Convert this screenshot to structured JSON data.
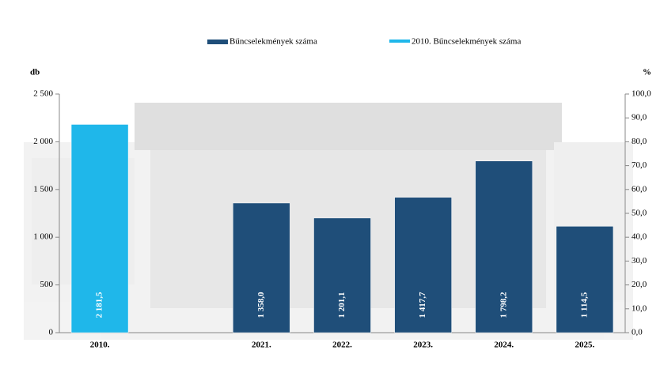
{
  "chart_data": {
    "type": "bar",
    "categories": [
      "2010.",
      null,
      "2021.",
      "2022.",
      "2023.",
      "2024.",
      "2025."
    ],
    "series": [
      {
        "name": "Bűncselekmények száma",
        "color": "#1f4e79",
        "values": [
          null,
          null,
          1358.0,
          1201.1,
          1417.7,
          1798.2,
          1114.5
        ],
        "value_labels": [
          null,
          null,
          "1 358,0",
          "1 201,1",
          "1 417,7",
          "1 798,2",
          "1 114,5"
        ]
      },
      {
        "name": "2010. Bűncselekmények száma",
        "color": "#1fb7ea",
        "values": [
          2181.5,
          null,
          null,
          null,
          null,
          null,
          null
        ],
        "value_labels": [
          "2 181,5",
          null,
          null,
          null,
          null,
          null,
          null
        ]
      }
    ],
    "ylabel": "db",
    "y2label": "%",
    "ylim": [
      0,
      2500
    ],
    "yticks": [
      0,
      500,
      {
        "value": 1000,
        "label": "1 000"
      },
      {
        "value": 1500,
        "label": "1 500"
      },
      {
        "value": 2000,
        "label": "2 000"
      },
      {
        "value": 2500,
        "label": "2 500"
      }
    ],
    "y2lim": [
      0,
      100
    ],
    "y2ticks": [
      {
        "value": 0,
        "label": "0,0"
      },
      {
        "value": 10,
        "label": "10,0"
      },
      {
        "value": 20,
        "label": "20,0"
      },
      {
        "value": 30,
        "label": "30,0"
      },
      {
        "value": 40,
        "label": "40,0"
      },
      {
        "value": 50,
        "label": "50,0"
      },
      {
        "value": 60,
        "label": "60,0"
      },
      {
        "value": 70,
        "label": "70,0"
      },
      {
        "value": 80,
        "label": "80,0"
      },
      {
        "value": 90,
        "label": "90,0"
      },
      {
        "value": 100,
        "label": "100,0"
      }
    ],
    "grid": false,
    "legend": "top"
  }
}
